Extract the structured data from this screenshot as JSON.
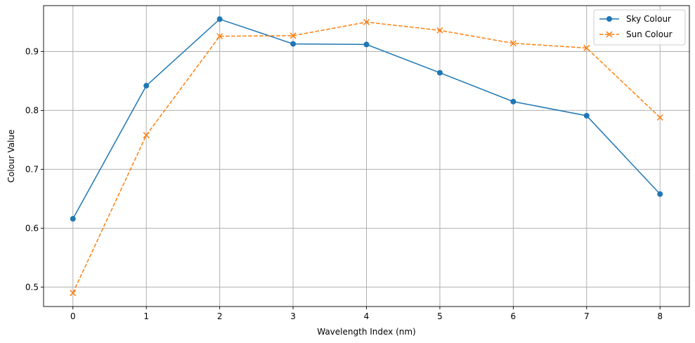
{
  "chart_data": {
    "type": "line",
    "title": "",
    "xlabel": "Wavelength Index (nm)",
    "ylabel": "Colour Value",
    "x": [
      0,
      1,
      2,
      3,
      4,
      5,
      6,
      7,
      8
    ],
    "xlim": [
      -0.4,
      8.4
    ],
    "ylim": [
      0.467,
      0.978
    ],
    "xticks": [
      0,
      1,
      2,
      3,
      4,
      5,
      6,
      7,
      8
    ],
    "yticks": [
      0.5,
      0.6,
      0.7,
      0.8,
      0.9
    ],
    "xtick_labels": [
      "0",
      "1",
      "2",
      "3",
      "4",
      "5",
      "6",
      "7",
      "8"
    ],
    "ytick_labels": [
      "0.5",
      "0.6",
      "0.7",
      "0.8",
      "0.9"
    ],
    "grid": true,
    "legend_position": "top-right",
    "series": [
      {
        "name": "Sky Colour",
        "color": "#1f77b4",
        "line_style": "solid",
        "marker": "circle",
        "values": [
          0.616,
          0.842,
          0.955,
          0.913,
          0.912,
          0.864,
          0.815,
          0.791,
          0.658
        ]
      },
      {
        "name": "Sun Colour",
        "color": "#ff7f0e",
        "line_style": "dashed",
        "marker": "x",
        "values": [
          0.49,
          0.758,
          0.926,
          0.927,
          0.95,
          0.936,
          0.914,
          0.906,
          0.788
        ]
      }
    ]
  }
}
